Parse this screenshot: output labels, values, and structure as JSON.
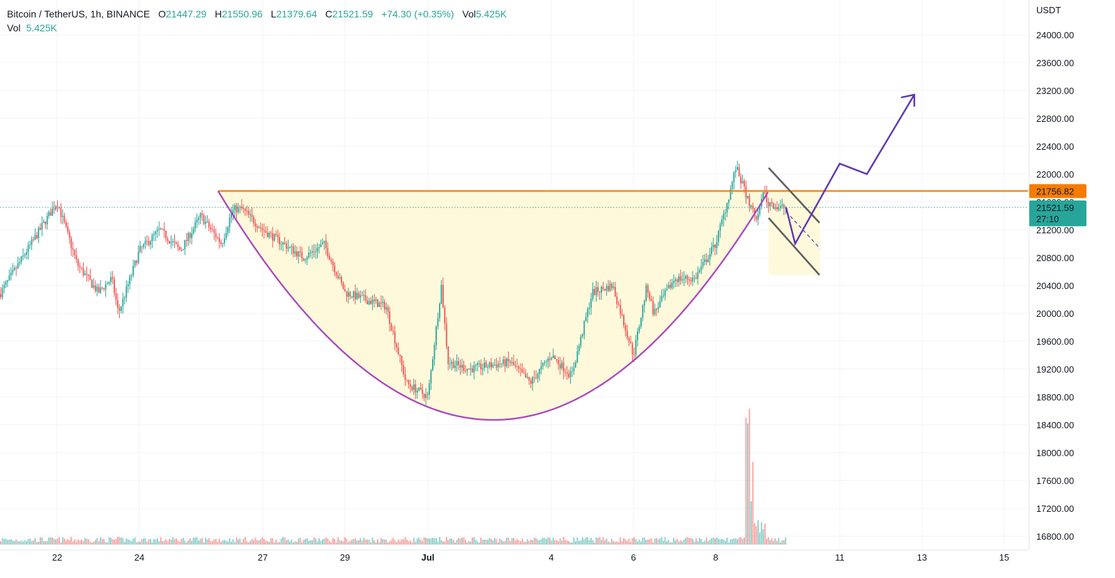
{
  "legend": {
    "symbol": "Bitcoin / TetherUS, 1h, BINANCE",
    "o_label": "O",
    "o_value": "21447.29",
    "h_label": "H",
    "h_value": "21550.96",
    "l_label": "L",
    "l_value": "21379.64",
    "c_label": "C",
    "c_value": "21521.59",
    "change": "+74.30 (+0.35%)",
    "vol_label": "Vol",
    "vol_value": "5.425K",
    "vol2_label": "Vol",
    "vol2_value": "5.425K"
  },
  "price_axis": {
    "currency": "USDT",
    "ticks": [
      "24000.00",
      "23600.00",
      "23200.00",
      "22800.00",
      "22400.00",
      "22000.00",
      "21600.00",
      "21200.00",
      "20800.00",
      "20400.00",
      "20000.00",
      "19600.00",
      "19200.00",
      "18800.00",
      "18400.00",
      "18000.00",
      "17600.00",
      "17200.00",
      "16800.00"
    ]
  },
  "time_axis": {
    "labels": [
      "22",
      "24",
      "27",
      "29",
      "Jul",
      "4",
      "6",
      "8",
      "11",
      "13",
      "15"
    ]
  },
  "markers": {
    "resistance_price": "21756.82",
    "last_price": "21521.59",
    "countdown": "27:10"
  },
  "colors": {
    "up": "#26a69a",
    "down": "#ef5350",
    "resistance": "#f57c00",
    "cup": "#ab47bc",
    "projection": "#5e35b1",
    "channel": "#606060",
    "fill": "#fff9dc"
  },
  "chart_data": {
    "type": "candlestick",
    "symbol": "Bitcoin / TetherUS",
    "interval": "1h",
    "ylim": [
      16600,
      24400
    ],
    "key_levels": [
      21756.82,
      21521.59
    ],
    "price_path": [
      {
        "x": "Jun 21",
        "y": 20900
      },
      {
        "x": "Jun 21",
        "y": 20100
      },
      {
        "x": "Jun 22",
        "y": 21600
      },
      {
        "x": "Jun 22",
        "y": 20700
      },
      {
        "x": "Jun 23",
        "y": 20300
      },
      {
        "x": "Jun 23",
        "y": 20500
      },
      {
        "x": "Jun 23",
        "y": 20000
      },
      {
        "x": "Jun 24",
        "y": 20900
      },
      {
        "x": "Jun 24",
        "y": 21200
      },
      {
        "x": "Jun 25",
        "y": 20900
      },
      {
        "x": "Jun 25",
        "y": 21400
      },
      {
        "x": "Jun 26",
        "y": 21000
      },
      {
        "x": "Jun 26",
        "y": 21450
      },
      {
        "x": "Jun 26",
        "y": 21500
      },
      {
        "x": "Jun 26",
        "y": 21500
      },
      {
        "x": "Jun 27",
        "y": 21200
      },
      {
        "x": "Jun 28",
        "y": 20800
      },
      {
        "x": "Jun 28",
        "y": 21000
      },
      {
        "x": "Jun 29",
        "y": 20300
      },
      {
        "x": "Jun 29",
        "y": 20200
      },
      {
        "x": "Jun 30",
        "y": 20100
      },
      {
        "x": "Jun 30",
        "y": 19000
      },
      {
        "x": "Jul 1",
        "y": 18800
      },
      {
        "x": "Jul 1",
        "y": 20400
      },
      {
        "x": "Jul 1",
        "y": 19300
      },
      {
        "x": "Jul 2",
        "y": 19200
      },
      {
        "x": "Jul 3",
        "y": 19300
      },
      {
        "x": "Jul 3",
        "y": 19000
      },
      {
        "x": "Jul 4",
        "y": 19400
      },
      {
        "x": "Jul 4",
        "y": 19100
      },
      {
        "x": "Jul 5",
        "y": 20300
      },
      {
        "x": "Jul 5",
        "y": 20400
      },
      {
        "x": "Jul 6",
        "y": 19400
      },
      {
        "x": "Jul 6",
        "y": 20400
      },
      {
        "x": "Jul 6",
        "y": 20000
      },
      {
        "x": "Jul 7",
        "y": 20500
      },
      {
        "x": "Jul 7",
        "y": 20500
      },
      {
        "x": "Jul 8",
        "y": 21000
      },
      {
        "x": "Jul 8",
        "y": 21700
      },
      {
        "x": "Jul 8",
        "y": 22100
      },
      {
        "x": "Jul 9",
        "y": 21300
      },
      {
        "x": "Jul 9",
        "y": 21800
      },
      {
        "x": "Jul 9",
        "y": 21550
      },
      {
        "x": "Jul 9",
        "y": 21600
      },
      {
        "x": "Jul 9",
        "y": 21520
      }
    ],
    "volume_spike": {
      "x": "Jul 8",
      "value": "max"
    }
  }
}
